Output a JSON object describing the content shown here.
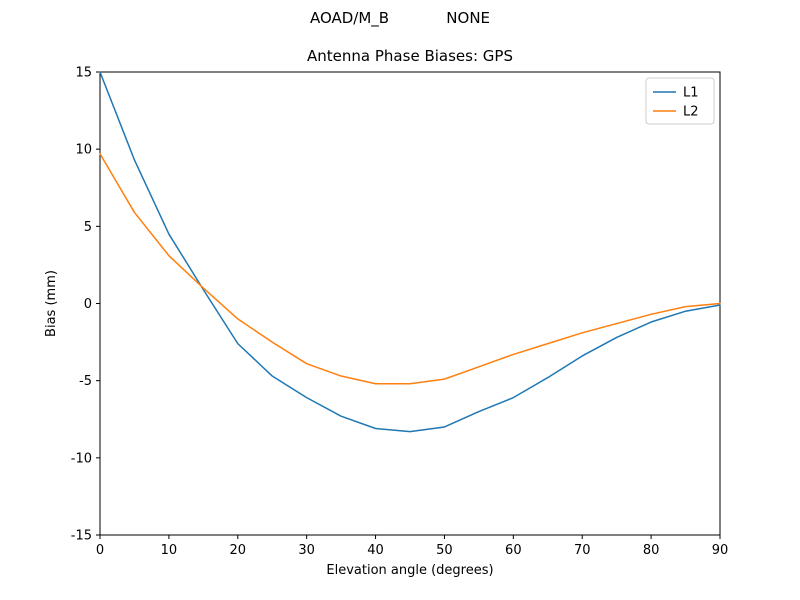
{
  "chart_data": {
    "type": "line",
    "suptitle": "AOAD/M_B            NONE",
    "title": "Antenna Phase Biases: GPS",
    "xlabel": "Elevation angle (degrees)",
    "ylabel": "Bias (mm)",
    "xlim": [
      0,
      90
    ],
    "ylim": [
      -15,
      15
    ],
    "xticks": [
      0,
      10,
      20,
      30,
      40,
      50,
      60,
      70,
      80,
      90
    ],
    "yticks": [
      -15,
      -10,
      -5,
      0,
      5,
      10,
      15
    ],
    "grid": false,
    "legend": {
      "position": "upper right",
      "entries": [
        "L1",
        "L2"
      ]
    },
    "x": [
      0,
      5,
      10,
      15,
      20,
      25,
      30,
      35,
      40,
      45,
      50,
      55,
      60,
      65,
      70,
      75,
      80,
      85,
      90
    ],
    "series": [
      {
        "name": "L1",
        "color": "#1f77b4",
        "values": [
          15.0,
          9.3,
          4.5,
          0.9,
          -2.6,
          -4.7,
          -6.1,
          -7.3,
          -8.1,
          -8.3,
          -8.0,
          -7.0,
          -6.1,
          -4.8,
          -3.4,
          -2.2,
          -1.2,
          -0.5,
          -0.1
        ]
      },
      {
        "name": "L2",
        "color": "#ff7f0e",
        "values": [
          9.7,
          5.9,
          3.1,
          1.0,
          -1.0,
          -2.5,
          -3.9,
          -4.7,
          -5.2,
          -5.2,
          -4.9,
          -4.1,
          -3.3,
          -2.6,
          -1.9,
          -1.3,
          -0.7,
          -0.2,
          0.0
        ]
      }
    ]
  },
  "style": {
    "spine_color": "#000000",
    "text_color": "#000000",
    "legend_edge_color": "#cccccc",
    "background": "#ffffff"
  }
}
